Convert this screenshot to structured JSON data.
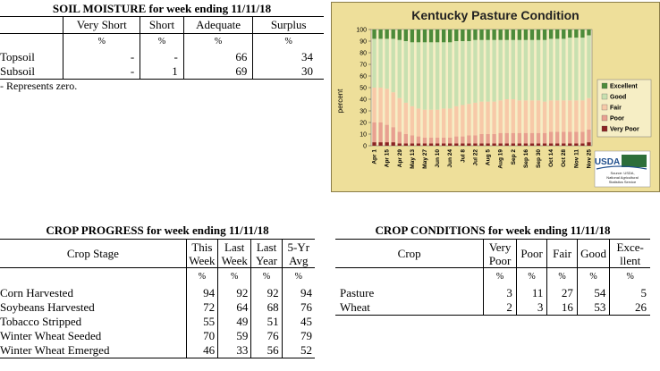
{
  "soil": {
    "title": "SOIL MOISTURE for week ending 11/11/18",
    "headers": [
      "Very Short",
      "Short",
      "Adequate",
      "Surplus"
    ],
    "pct": "%",
    "rows": [
      {
        "label": "Topsoil",
        "values": [
          "-",
          "-",
          "66",
          "34"
        ]
      },
      {
        "label": "Subsoil",
        "values": [
          "-",
          "1",
          "69",
          "30"
        ]
      }
    ],
    "note": "- Represents zero."
  },
  "progress": {
    "title": "CROP PROGRESS for week ending 11/11/18",
    "stage_header": "Crop Stage",
    "headers": [
      [
        "This",
        "Week"
      ],
      [
        "Last",
        "Week"
      ],
      [
        "Last",
        "Year"
      ],
      [
        "5-Yr",
        "Avg"
      ]
    ],
    "pct": "%",
    "rows": [
      {
        "label": "Corn Harvested",
        "values": [
          "94",
          "92",
          "92",
          "94"
        ]
      },
      {
        "label": "Soybeans Harvested",
        "values": [
          "72",
          "64",
          "68",
          "76"
        ]
      },
      {
        "label": "Tobacco Stripped",
        "values": [
          "55",
          "49",
          "51",
          "45"
        ]
      },
      {
        "label": "Winter Wheat Seeded",
        "values": [
          "70",
          "59",
          "76",
          "79"
        ]
      },
      {
        "label": "Winter Wheat Emerged",
        "values": [
          "46",
          "33",
          "56",
          "52"
        ]
      }
    ]
  },
  "conditions": {
    "title": "CROP CONDITIONS for week ending 11/11/18",
    "crop_header": "Crop",
    "headers": [
      [
        "Very",
        "Poor"
      ],
      [
        "Poor"
      ],
      [
        "Fair"
      ],
      [
        "Good"
      ],
      [
        "Exce-",
        "llent"
      ]
    ],
    "pct": "%",
    "rows": [
      {
        "label": "Pasture",
        "values": [
          "3",
          "11",
          "27",
          "54",
          "5"
        ]
      },
      {
        "label": "Wheat",
        "values": [
          "2",
          "3",
          "16",
          "53",
          "26"
        ]
      }
    ]
  },
  "chart_data": {
    "type": "bar",
    "stacked": true,
    "title": "Kentucky Pasture Condition",
    "ylabel": "percent",
    "ylim": [
      0,
      100
    ],
    "yticks": [
      0,
      10,
      20,
      30,
      40,
      50,
      60,
      70,
      80,
      90,
      100
    ],
    "x_tick_labels": [
      "Apr 1",
      "Apr 15",
      "Apr 29",
      "May 13",
      "May 27",
      "Jun 10",
      "Jun 24",
      "Jul 8",
      "Jul 22",
      "Aug 5",
      "Aug 19",
      "Sep 2",
      "Sep 16",
      "Sep 30",
      "Oct 14",
      "Oct 28",
      "Nov 11",
      "Nov 25"
    ],
    "legend_position": "right",
    "colors": {
      "very_poor": "#8b2323",
      "poor": "#e8a090",
      "fair": "#f7c9a8",
      "good": "#c8e0b0",
      "excellent": "#4c8b3a"
    },
    "series": [
      {
        "name": "Very Poor",
        "values": [
          3,
          3,
          3,
          3,
          2,
          2,
          2,
          2,
          2,
          2,
          2,
          2,
          2,
          2,
          2,
          2,
          2,
          2,
          2,
          2,
          2,
          2,
          2,
          2,
          2,
          2,
          2,
          2,
          2,
          2,
          2,
          2,
          2,
          2,
          3
        ]
      },
      {
        "name": "Poor",
        "values": [
          17,
          17,
          15,
          13,
          10,
          8,
          7,
          6,
          5,
          5,
          5,
          5,
          5,
          6,
          6,
          7,
          7,
          8,
          8,
          8,
          9,
          9,
          9,
          9,
          9,
          9,
          9,
          9,
          10,
          10,
          10,
          10,
          10,
          10,
          11
        ]
      },
      {
        "name": "Fair",
        "values": [
          30,
          30,
          31,
          30,
          29,
          27,
          25,
          24,
          24,
          24,
          24,
          25,
          25,
          26,
          27,
          27,
          28,
          28,
          28,
          28,
          28,
          29,
          29,
          28,
          28,
          28,
          28,
          27,
          27,
          27,
          27,
          27,
          27,
          27,
          27
        ]
      },
      {
        "name": "Good",
        "values": [
          42,
          42,
          43,
          46,
          50,
          53,
          55,
          57,
          58,
          58,
          58,
          57,
          57,
          56,
          55,
          54,
          54,
          53,
          53,
          53,
          52,
          51,
          51,
          52,
          52,
          52,
          52,
          53,
          53,
          53,
          53,
          54,
          54,
          54,
          54
        ]
      },
      {
        "name": "Excellent",
        "values": [
          8,
          8,
          8,
          8,
          9,
          10,
          11,
          11,
          11,
          11,
          11,
          11,
          11,
          10,
          10,
          10,
          9,
          9,
          9,
          9,
          9,
          9,
          9,
          9,
          9,
          9,
          9,
          9,
          8,
          8,
          8,
          7,
          7,
          7,
          5
        ]
      }
    ]
  },
  "logo": {
    "text": "USDA",
    "caption": [
      "Source: USDA,",
      "National Agricultural",
      "Statistics Service"
    ]
  }
}
